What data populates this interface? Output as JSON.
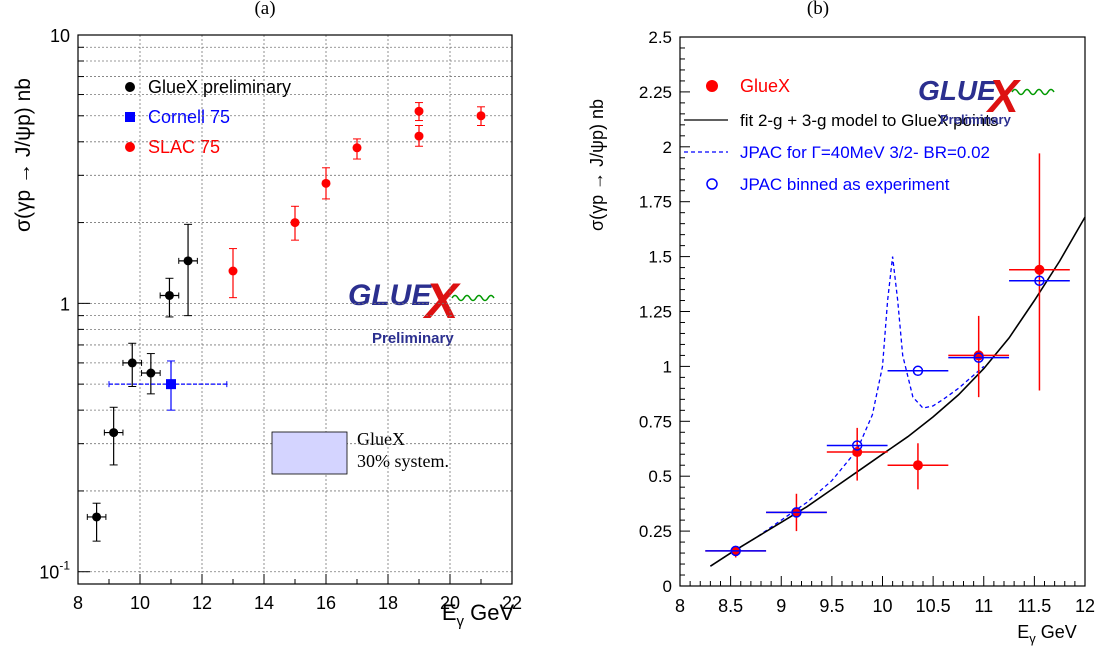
{
  "chart_data": [
    {
      "panel_label": "(a)",
      "type": "scatter",
      "xlabel": "E",
      "xlabel_sub": "γ",
      "xlabel_unit": " GeV",
      "ylabel": "σ(γp → J/ψp) nb",
      "xlim": [
        8,
        22
      ],
      "ylim": [
        0.09,
        10
      ],
      "yscale": "log",
      "grid": true,
      "xticks": [
        "8",
        "10",
        "12",
        "14",
        "16",
        "18",
        "20",
        "22"
      ],
      "yticks": [
        {
          "value": 10,
          "label": "10"
        },
        {
          "value": 1,
          "label": "1"
        },
        {
          "value": 0.1,
          "label": "10",
          "sup": "-1"
        }
      ],
      "legend_position": "top-left",
      "series": [
        {
          "name": "GlueX preliminary",
          "color": "#000000",
          "marker": "circle",
          "points": [
            {
              "x": 8.6,
              "y": 0.16,
              "xerr": 0.3,
              "ylo": 0.13,
              "yhi": 0.18
            },
            {
              "x": 9.15,
              "y": 0.33,
              "xerr": 0.3,
              "ylo": 0.25,
              "yhi": 0.41
            },
            {
              "x": 9.75,
              "y": 0.6,
              "xerr": 0.3,
              "ylo": 0.49,
              "yhi": 0.71
            },
            {
              "x": 10.35,
              "y": 0.55,
              "xerr": 0.3,
              "ylo": 0.46,
              "yhi": 0.65
            },
            {
              "x": 10.95,
              "y": 1.07,
              "xerr": 0.3,
              "ylo": 0.89,
              "yhi": 1.24
            },
            {
              "x": 11.55,
              "y": 1.44,
              "xerr": 0.3,
              "ylo": 0.9,
              "yhi": 1.97
            }
          ]
        },
        {
          "name": "Cornell 75",
          "color": "#0000ff",
          "marker": "square",
          "points": [
            {
              "x": 11.0,
              "y": 0.5,
              "xlo": 9.0,
              "xhi": 12.8,
              "ylo": 0.4,
              "yhi": 0.61
            }
          ]
        },
        {
          "name": "SLAC 75",
          "color": "#ff0000",
          "marker": "circle",
          "points": [
            {
              "x": 13.0,
              "y": 1.32,
              "ylo": 1.05,
              "yhi": 1.6
            },
            {
              "x": 15.0,
              "y": 2.0,
              "ylo": 1.72,
              "yhi": 2.3
            },
            {
              "x": 16.0,
              "y": 2.8,
              "ylo": 2.45,
              "yhi": 3.2
            },
            {
              "x": 17.0,
              "y": 3.8,
              "ylo": 3.45,
              "yhi": 4.1
            },
            {
              "x": 19.0,
              "y": 4.2,
              "ylo": 3.85,
              "yhi": 4.6
            },
            {
              "x": 19.0,
              "y": 5.2,
              "ylo": 4.8,
              "yhi": 5.6
            },
            {
              "x": 21.0,
              "y": 5.0,
              "ylo": 4.6,
              "yhi": 5.4
            }
          ]
        }
      ],
      "annotation_box": {
        "line1": "GlueX",
        "line2": "30% system.",
        "fill": "#d4d4ff"
      },
      "logo": {
        "text": "GLUE",
        "big_letter": "X",
        "sub": "Preliminary"
      }
    },
    {
      "panel_label": "(b)",
      "type": "scatter",
      "xlabel": "E",
      "xlabel_sub": "γ",
      "xlabel_unit": " GeV",
      "ylabel": "σ(γp → J/ψp) nb",
      "xlim": [
        8,
        12
      ],
      "ylim": [
        0,
        2.5
      ],
      "grid": false,
      "xticks": [
        "8",
        "8.5",
        "9",
        "9.5",
        "10",
        "10.5",
        "11",
        "11.5",
        "12"
      ],
      "yticks": [
        "0",
        "0.25",
        "0.5",
        "0.75",
        "1",
        "1.25",
        "1.5",
        "1.75",
        "2",
        "2.25",
        "2.5"
      ],
      "legend_position": "top-left",
      "legend": [
        {
          "label": "GlueX",
          "color": "#ff0000",
          "kind": "dot"
        },
        {
          "label": "fit 2-g + 3-g model to GlueX points",
          "color": "#000000",
          "kind": "line"
        },
        {
          "label": "JPAC for Γ=40MeV 3/2- BR=0.02",
          "color": "#0000ff",
          "kind": "dashed"
        },
        {
          "label": "JPAC binned as experiment",
          "color": "#0000ff",
          "kind": "open-circle"
        }
      ],
      "gluex_points": [
        {
          "x": 8.55,
          "y": 0.16,
          "xerr": 0.3,
          "ylo": 0.13,
          "yhi": 0.18
        },
        {
          "x": 9.15,
          "y": 0.335,
          "xerr": 0.3,
          "ylo": 0.25,
          "yhi": 0.42
        },
        {
          "x": 9.75,
          "y": 0.61,
          "xerr": 0.3,
          "ylo": 0.48,
          "yhi": 0.72
        },
        {
          "x": 10.35,
          "y": 0.55,
          "xerr": 0.3,
          "ylo": 0.44,
          "yhi": 0.65
        },
        {
          "x": 10.95,
          "y": 1.05,
          "xerr": 0.3,
          "ylo": 0.86,
          "yhi": 1.23
        },
        {
          "x": 11.55,
          "y": 1.44,
          "xerr": 0.3,
          "ylo": 0.89,
          "yhi": 1.97
        }
      ],
      "jpac_binned": [
        {
          "x": 8.55,
          "y": 0.16,
          "xerr": 0.3
        },
        {
          "x": 9.15,
          "y": 0.335,
          "xerr": 0.3
        },
        {
          "x": 9.75,
          "y": 0.64,
          "xerr": 0.3
        },
        {
          "x": 10.35,
          "y": 0.98,
          "xerr": 0.3
        },
        {
          "x": 10.95,
          "y": 1.04,
          "xerr": 0.3
        },
        {
          "x": 11.55,
          "y": 1.39,
          "xerr": 0.3
        }
      ],
      "fit_curve": {
        "x": [
          8.3,
          8.5,
          8.75,
          9.0,
          9.25,
          9.5,
          9.75,
          10.0,
          10.25,
          10.5,
          10.75,
          11.0,
          11.25,
          11.5,
          11.75,
          12.0
        ],
        "y": [
          0.09,
          0.15,
          0.22,
          0.29,
          0.36,
          0.44,
          0.52,
          0.6,
          0.68,
          0.77,
          0.87,
          0.99,
          1.13,
          1.3,
          1.48,
          1.68
        ]
      },
      "jpac_curve": {
        "x": [
          8.3,
          8.5,
          8.75,
          9.0,
          9.25,
          9.5,
          9.75,
          9.9,
          10.0,
          10.05,
          10.1,
          10.15,
          10.2,
          10.3,
          10.4,
          10.5,
          10.6,
          10.75,
          11.0
        ],
        "y": [
          0.09,
          0.15,
          0.22,
          0.3,
          0.38,
          0.48,
          0.62,
          0.78,
          1.0,
          1.3,
          1.5,
          1.3,
          1.05,
          0.86,
          0.81,
          0.82,
          0.85,
          0.9,
          1.0
        ]
      },
      "logo": {
        "text": "GLUE",
        "big_letter": "X",
        "sub": "Preliminary"
      }
    }
  ]
}
